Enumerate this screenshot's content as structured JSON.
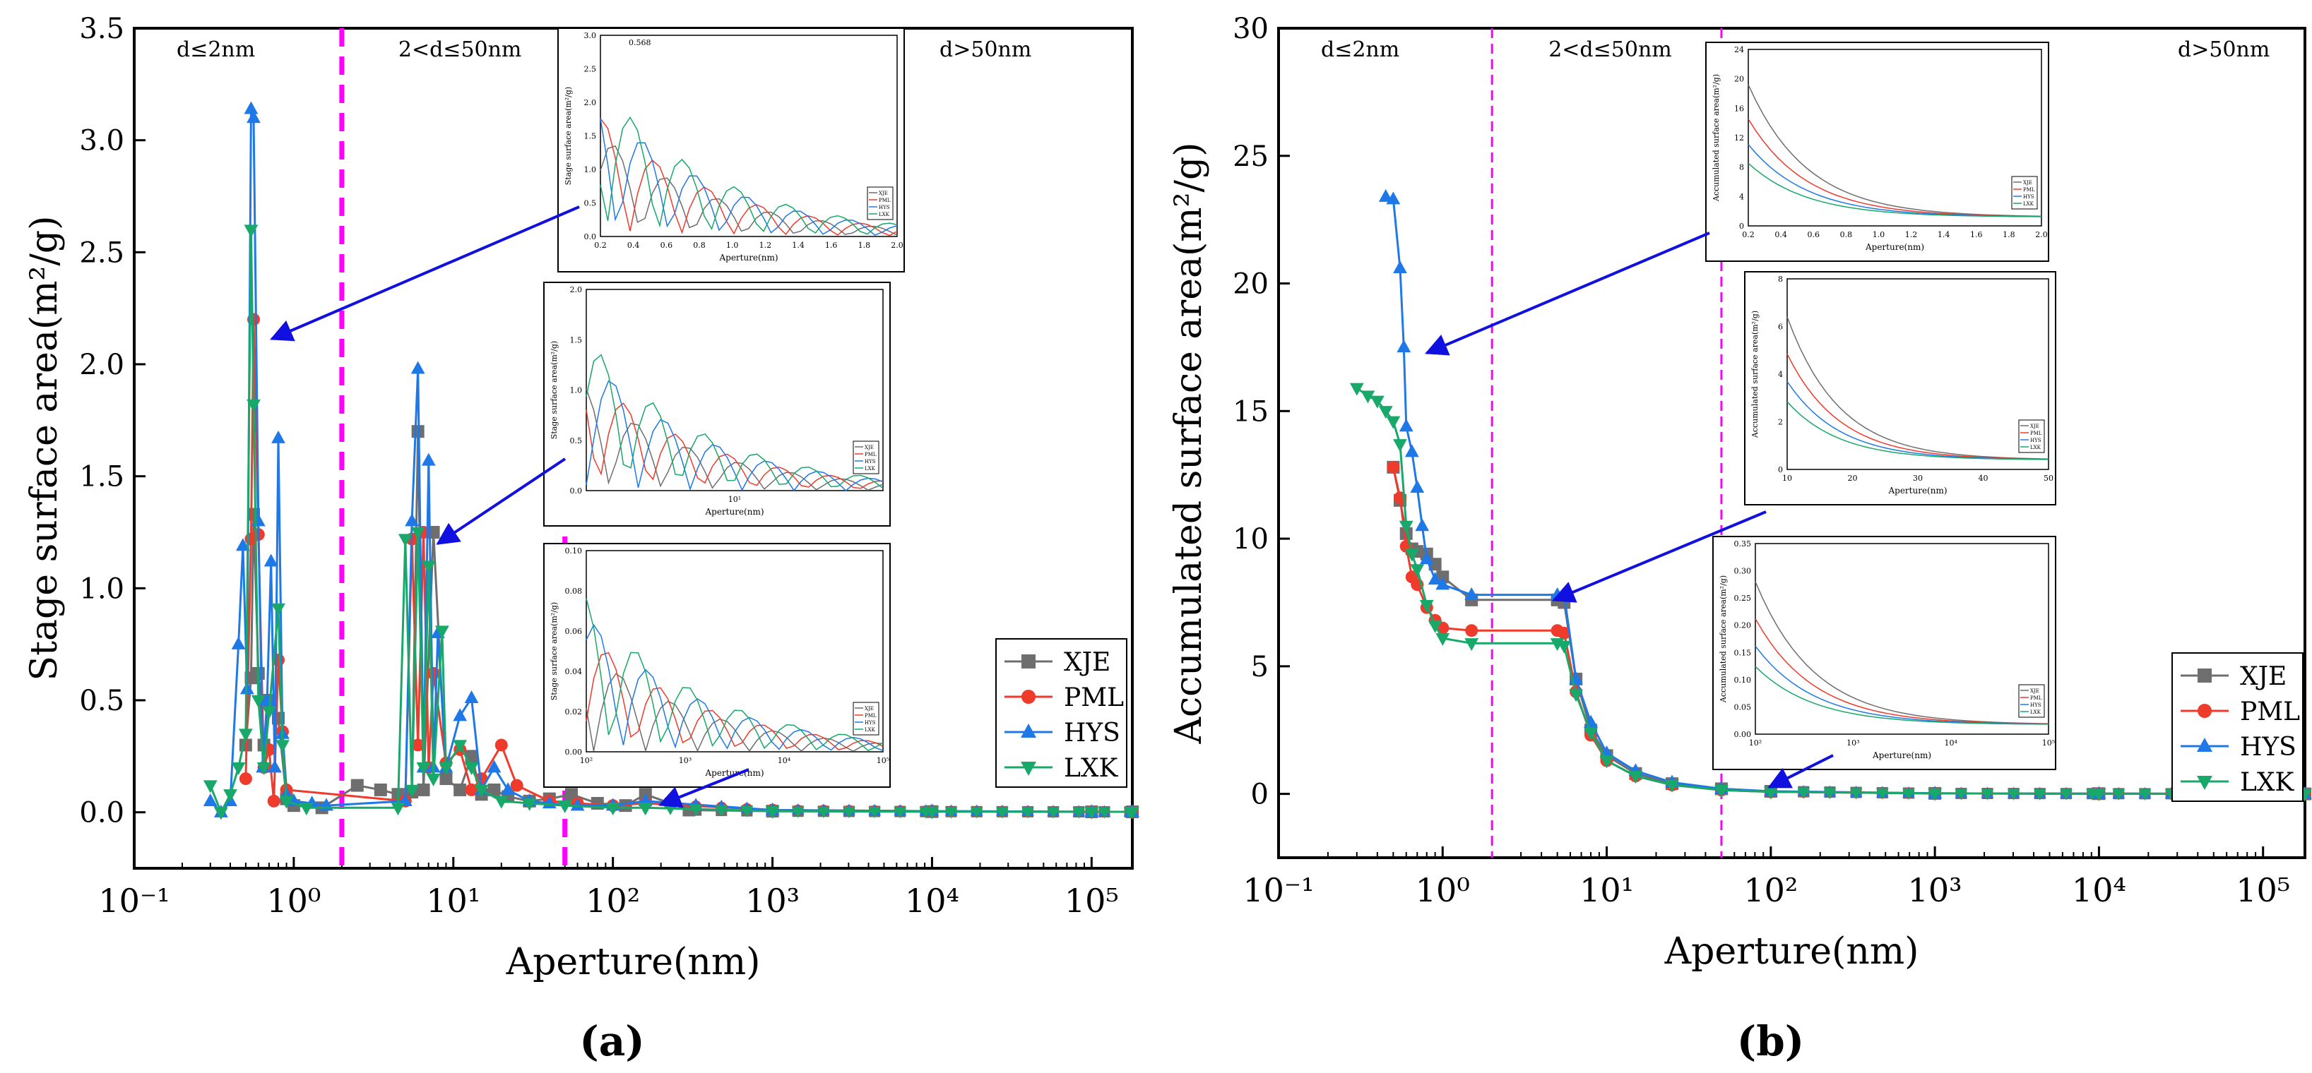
{
  "colors": {
    "XJE": "#6e6e6e",
    "PML": "#ef3b2c",
    "HYS": "#1f78e8",
    "LXK": "#17a86a",
    "divider": "#ff00ff",
    "arrow": "#1010e0"
  },
  "chart_data": [
    {
      "type": "line",
      "panel_label": "(a)",
      "ylabel": "Stage surface area(m²/g)",
      "xlabel": "Aperture(nm)",
      "xscale": "log",
      "xlim": [
        0.1,
        180000
      ],
      "ylim": [
        -0.25,
        3.5
      ],
      "x_ticks": [
        "10⁻¹",
        "10⁰",
        "10¹",
        "10²",
        "10³",
        "10⁴",
        "10⁵"
      ],
      "y_ticks": [
        "0.0",
        "0.5",
        "1.0",
        "1.5",
        "2.0",
        "2.5",
        "3.0",
        "3.5"
      ],
      "region_labels": [
        "d≤2nm",
        "2<d≤50nm",
        "d>50nm"
      ],
      "dividers": [
        2,
        50
      ],
      "legend": [
        "XJE",
        "PML",
        "HYS",
        "LXK"
      ],
      "series": [
        {
          "name": "XJE",
          "x": [
            0.5,
            0.54,
            0.56,
            0.6,
            0.65,
            0.7,
            0.8,
            0.9,
            1.0,
            1.5,
            2.5,
            3.5,
            4.5,
            5.5,
            6.0,
            6.5,
            7.5,
            9,
            11,
            13,
            15,
            18,
            22,
            30,
            40,
            55,
            80,
            120,
            160,
            300,
            1000,
            10000,
            100000,
            180000
          ],
          "y": [
            0.3,
            0.6,
            1.33,
            0.62,
            0.3,
            0.5,
            0.42,
            0.06,
            0.03,
            0.02,
            0.12,
            0.1,
            0.08,
            0.09,
            1.7,
            0.1,
            1.25,
            0.15,
            0.1,
            0.25,
            0.08,
            0.1,
            0.07,
            0.05,
            0.06,
            0.08,
            0.04,
            0.03,
            0.08,
            0.01,
            0.005,
            0.003,
            0.002,
            0.002
          ]
        },
        {
          "name": "PML",
          "x": [
            0.5,
            0.54,
            0.56,
            0.6,
            0.65,
            0.7,
            0.75,
            0.8,
            0.85,
            0.9,
            5.0,
            5.5,
            6.0,
            6.5,
            7.0,
            7.5,
            9,
            11,
            13,
            15,
            20,
            25,
            40,
            60,
            100,
            160,
            1000,
            10000,
            100000,
            180000
          ],
          "y": [
            0.15,
            1.22,
            2.2,
            1.24,
            0.2,
            0.28,
            0.05,
            0.68,
            0.36,
            0.1,
            0.05,
            1.22,
            0.3,
            1.25,
            0.2,
            0.62,
            0.22,
            0.28,
            0.1,
            0.15,
            0.3,
            0.12,
            0.05,
            0.04,
            0.03,
            0.04,
            0.01,
            0.005,
            0.002,
            0.002
          ]
        },
        {
          "name": "HYS",
          "x": [
            0.3,
            0.35,
            0.4,
            0.45,
            0.48,
            0.51,
            0.54,
            0.56,
            0.6,
            0.64,
            0.68,
            0.72,
            0.76,
            0.8,
            0.85,
            0.9,
            1.0,
            1.3,
            1.6,
            5.0,
            5.5,
            6.0,
            6.5,
            7.0,
            7.5,
            8.0,
            9,
            11,
            13,
            15,
            18,
            22,
            30,
            40,
            60,
            100,
            160,
            1000,
            10000,
            100000,
            180000
          ],
          "y": [
            0.05,
            0.0,
            0.05,
            0.75,
            1.19,
            0.55,
            3.14,
            3.1,
            1.3,
            0.2,
            0.5,
            1.12,
            0.2,
            1.67,
            0.35,
            0.08,
            0.05,
            0.04,
            0.03,
            0.05,
            1.3,
            1.98,
            0.2,
            1.57,
            0.2,
            0.8,
            0.2,
            0.43,
            0.51,
            0.1,
            0.2,
            0.1,
            0.05,
            0.04,
            0.03,
            0.03,
            0.05,
            0.01,
            0.005,
            0.002,
            0.002
          ]
        },
        {
          "name": "LXK",
          "x": [
            0.3,
            0.35,
            0.4,
            0.45,
            0.5,
            0.54,
            0.56,
            0.6,
            0.65,
            0.7,
            0.8,
            0.85,
            0.9,
            1.2,
            4.5,
            5.0,
            5.5,
            6.0,
            6.5,
            7.0,
            7.5,
            8.5,
            9,
            11,
            13,
            15,
            20,
            30,
            50,
            100,
            160,
            1000,
            10000,
            100000,
            180000
          ],
          "y": [
            0.12,
            0.0,
            0.08,
            0.2,
            0.35,
            2.6,
            1.82,
            0.5,
            0.2,
            0.45,
            0.91,
            0.3,
            0.05,
            0.02,
            0.02,
            1.22,
            0.1,
            1.25,
            0.2,
            1.1,
            0.15,
            0.81,
            0.2,
            0.3,
            0.2,
            0.1,
            0.05,
            0.04,
            0.03,
            0.02,
            0.02,
            0.005,
            0.003,
            0.002,
            0.002
          ]
        }
      ],
      "insets": [
        {
          "xlabel": "Aperture(nm)",
          "ylabel": "Stage surface area(m²/g)",
          "annotation": "0.568",
          "x_ticks": [
            "0.2",
            "0.4",
            "0.6",
            "0.8",
            "1.0",
            "1.2",
            "1.4",
            "1.6",
            "1.8",
            "2.0"
          ],
          "y_ticks": [
            "0.0",
            "0.5",
            "1.0",
            "1.5",
            "2.0",
            "2.5",
            "3.0"
          ]
        },
        {
          "xlabel": "Aperture(nm)",
          "ylabel": "Stage surface area(m²/g)",
          "x_ticks": [
            "10¹"
          ],
          "y_ticks": [
            "0.0",
            "0.5",
            "1.0",
            "1.5",
            "2.0"
          ]
        },
        {
          "xlabel": "Aperture(nm)",
          "ylabel": "Stage surface area(m²/g)",
          "x_ticks": [
            "10²",
            "10³",
            "10⁴",
            "10⁵"
          ],
          "y_ticks": [
            "0.00",
            "0.02",
            "0.04",
            "0.06",
            "0.08",
            "0.10"
          ]
        }
      ]
    },
    {
      "type": "line",
      "panel_label": "(b)",
      "ylabel": "Accumulated surface area(m²/g)",
      "xlabel": "Aperture(nm)",
      "xscale": "log",
      "xlim": [
        0.1,
        180000
      ],
      "ylim": [
        -2.5,
        30
      ],
      "x_ticks": [
        "10⁻¹",
        "10⁰",
        "10¹",
        "10²",
        "10³",
        "10⁴",
        "10⁵"
      ],
      "y_ticks": [
        "0",
        "5",
        "10",
        "15",
        "20",
        "25",
        "30"
      ],
      "region_labels": [
        "d≤2nm",
        "2<d≤50nm",
        "d>50nm"
      ],
      "dividers": [
        2,
        50
      ],
      "legend": [
        "XJE",
        "PML",
        "HYS",
        "LXK"
      ],
      "series": [
        {
          "name": "XJE",
          "x": [
            0.5,
            0.55,
            0.6,
            0.65,
            0.7,
            0.8,
            0.9,
            1.0,
            1.5,
            5.0,
            5.5,
            6.5,
            8,
            10,
            15,
            25,
            50,
            100,
            1000,
            10000,
            100000,
            180000
          ],
          "y": [
            12.8,
            11.5,
            10.2,
            9.6,
            9.5,
            9.4,
            9.0,
            8.5,
            7.6,
            7.6,
            7.5,
            4.5,
            2.5,
            1.5,
            0.8,
            0.4,
            0.2,
            0.1,
            0.02,
            0.01,
            0.0,
            0.0
          ]
        },
        {
          "name": "PML",
          "x": [
            0.5,
            0.55,
            0.6,
            0.65,
            0.7,
            0.8,
            0.9,
            1.0,
            1.5,
            5.0,
            5.5,
            6.5,
            8,
            10,
            15,
            25,
            50,
            100,
            1000,
            10000,
            100000,
            180000
          ],
          "y": [
            12.8,
            11.6,
            9.7,
            8.5,
            8.2,
            7.3,
            6.8,
            6.5,
            6.4,
            6.4,
            6.3,
            4.0,
            2.3,
            1.3,
            0.7,
            0.35,
            0.15,
            0.08,
            0.02,
            0.01,
            0.0,
            0.0
          ]
        },
        {
          "name": "HYS",
          "x": [
            0.45,
            0.5,
            0.55,
            0.58,
            0.6,
            0.65,
            0.7,
            0.75,
            0.8,
            0.9,
            1.0,
            1.5,
            5.0,
            5.5,
            6.5,
            8,
            10,
            15,
            25,
            50,
            100,
            1000,
            10000,
            100000,
            180000
          ],
          "y": [
            23.4,
            23.3,
            20.6,
            17.5,
            14.4,
            13.4,
            12.0,
            10.5,
            9.2,
            8.4,
            8.2,
            7.8,
            7.8,
            7.8,
            4.5,
            2.8,
            1.6,
            0.9,
            0.45,
            0.2,
            0.1,
            0.02,
            0.01,
            0.0,
            0.0
          ]
        },
        {
          "name": "LXK",
          "x": [
            0.3,
            0.35,
            0.4,
            0.45,
            0.5,
            0.55,
            0.6,
            0.65,
            0.7,
            0.8,
            0.9,
            1.0,
            1.5,
            5.0,
            5.5,
            6.5,
            8,
            10,
            15,
            25,
            50,
            100,
            1000,
            10000,
            100000,
            180000
          ],
          "y": [
            15.9,
            15.6,
            15.4,
            15.0,
            14.6,
            13.7,
            10.5,
            9.4,
            8.8,
            7.4,
            6.6,
            6.1,
            5.9,
            5.9,
            5.8,
            3.9,
            2.4,
            1.3,
            0.7,
            0.35,
            0.15,
            0.08,
            0.02,
            0.01,
            0.0,
            0.0
          ]
        }
      ],
      "insets": [
        {
          "xlabel": "Aperture(nm)",
          "ylabel": "Accumulated surface area(m²/g)",
          "x_ticks": [
            "0.2",
            "0.4",
            "0.6",
            "0.8",
            "1.0",
            "1.2",
            "1.4",
            "1.6",
            "1.8",
            "2.0"
          ],
          "y_ticks": [
            "0",
            "4",
            "8",
            "12",
            "16",
            "20",
            "24"
          ]
        },
        {
          "xlabel": "Aperture(nm)",
          "ylabel": "Accumulated surface area(m²/g)",
          "x_ticks": [
            "10",
            "20",
            "30",
            "40",
            "50"
          ],
          "y_ticks": [
            "0",
            "2",
            "4",
            "6",
            "8"
          ]
        },
        {
          "xlabel": "Aperture(nm)",
          "ylabel": "Accumulated surface area(m²/g)",
          "x_ticks": [
            "10²",
            "10³",
            "10⁴",
            "10⁵"
          ],
          "y_ticks": [
            "0.00",
            "0.05",
            "0.10",
            "0.15",
            "0.20",
            "0.25",
            "0.30",
            "0.35"
          ]
        }
      ]
    }
  ]
}
